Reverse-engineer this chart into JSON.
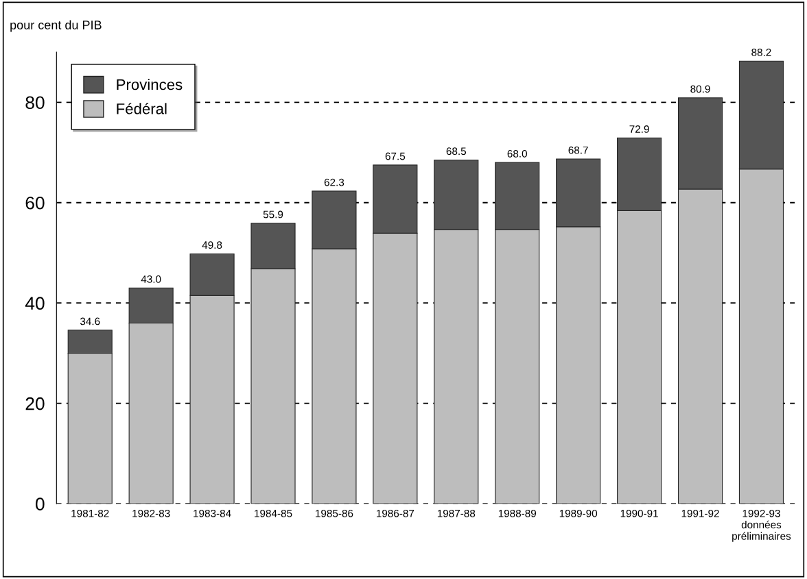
{
  "chart_data": {
    "type": "bar",
    "stacked": true,
    "ylabel": "pour cent du PIB",
    "categories": [
      "1981-82",
      "1982-83",
      "1983-84",
      "1984-85",
      "1985-86",
      "1986-87",
      "1987-88",
      "1988-89",
      "1989-90",
      "1990-91",
      "1991-92",
      "1992-93\ndonnées\npréliminaires"
    ],
    "series": [
      {
        "name": "Fédéral",
        "color": "#bdbdbd",
        "values": [
          30.0,
          36.0,
          41.5,
          46.8,
          50.8,
          53.9,
          54.6,
          54.6,
          55.2,
          58.4,
          62.7,
          66.7
        ]
      },
      {
        "name": "Provinces",
        "color": "#555555",
        "values": [
          4.6,
          7.0,
          8.3,
          9.1,
          11.5,
          13.6,
          13.9,
          13.4,
          13.5,
          14.5,
          18.2,
          21.5
        ]
      }
    ],
    "totals": [
      "34.6",
      "43.0",
      "49.8",
      "55.9",
      "62.3",
      "67.5",
      "68.5",
      "68.0",
      "68.7",
      "72.9",
      "80.9",
      "88.2"
    ],
    "ylim": [
      0,
      90
    ],
    "yticks": [
      0,
      20,
      40,
      60,
      80
    ],
    "grid": "y",
    "legend": "top left"
  }
}
